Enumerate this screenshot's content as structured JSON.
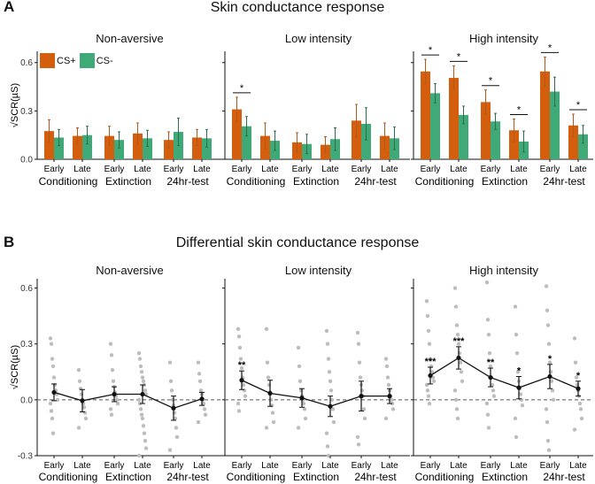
{
  "figure": {
    "panel_a_letter": "A",
    "panel_b_letter": "B",
    "panel_a_title": "Skin conductance response",
    "panel_b_title": "Differential skin conductance response"
  },
  "colors": {
    "cs_plus": "#D35F0E",
    "cs_minus": "#3FAA78",
    "dots": "#bdbdbd",
    "line": "#111111",
    "zero": "#555555"
  },
  "chart_data": [
    {
      "type": "bar",
      "title": "Skin conductance response",
      "ylabel": "√SCR(µS)",
      "ylim": [
        0,
        0.67
      ],
      "yticks": [
        0.0,
        0.3,
        0.6
      ],
      "ytick_labels": [
        "0.0",
        "0.3",
        "0.6"
      ],
      "facets": [
        "Non-aversive",
        "Low intensity",
        "High intensity"
      ],
      "phases": [
        "Conditioning",
        "Extinction",
        "24hr-test"
      ],
      "categories": [
        "Early",
        "Late",
        "Early",
        "Late",
        "Early",
        "Late"
      ],
      "legend": [
        "CS+",
        "CS-"
      ],
      "series": [
        {
          "name": "CS+",
          "facets": [
            {
              "values": [
                0.175,
                0.145,
                0.145,
                0.16,
                0.12,
                0.135
              ],
              "errors": [
                0.07,
                0.05,
                0.06,
                0.065,
                0.05,
                0.05
              ]
            },
            {
              "values": [
                0.31,
                0.145,
                0.105,
                0.09,
                0.24,
                0.145
              ],
              "errors": [
                0.075,
                0.08,
                0.06,
                0.05,
                0.1,
                0.08
              ]
            },
            {
              "values": [
                0.545,
                0.505,
                0.355,
                0.18,
                0.545,
                0.21
              ],
              "errors": [
                0.075,
                0.075,
                0.075,
                0.07,
                0.09,
                0.07
              ]
            }
          ]
        },
        {
          "name": "CS-",
          "facets": [
            {
              "values": [
                0.135,
                0.15,
                0.12,
                0.13,
                0.17,
                0.13
              ],
              "errors": [
                0.05,
                0.055,
                0.05,
                0.05,
                0.085,
                0.055
              ]
            },
            {
              "values": [
                0.205,
                0.115,
                0.095,
                0.125,
                0.22,
                0.13
              ],
              "errors": [
                0.06,
                0.06,
                0.06,
                0.07,
                0.1,
                0.07
              ]
            },
            {
              "values": [
                0.41,
                0.275,
                0.235,
                0.11,
                0.42,
                0.155
              ],
              "errors": [
                0.06,
                0.055,
                0.05,
                0.065,
                0.09,
                0.055
              ]
            }
          ]
        }
      ],
      "significance": [
        [],
        [
          {
            "index": 0,
            "label": "*"
          }
        ],
        [
          {
            "index": 0,
            "label": "*"
          },
          {
            "index": 1,
            "label": "*"
          },
          {
            "index": 2,
            "label": "*"
          },
          {
            "index": 3,
            "label": "*"
          },
          {
            "index": 4,
            "label": "*"
          },
          {
            "index": 5,
            "label": "*"
          }
        ]
      ]
    },
    {
      "type": "scatter",
      "title": "Differential skin conductance response",
      "ylabel": "√SCR(µS)",
      "ylim": [
        -0.3,
        0.65
      ],
      "yticks": [
        -0.3,
        0.0,
        0.3,
        0.6
      ],
      "ytick_labels": [
        "-0.3",
        "0.0",
        "0.3",
        "0.6"
      ],
      "facets": [
        "Non-aversive",
        "Low intensity",
        "High intensity"
      ],
      "phases": [
        "Conditioning",
        "Extinction",
        "24hr-test"
      ],
      "categories": [
        "Early",
        "Late",
        "Early",
        "Late",
        "Early",
        "Late"
      ],
      "means": [
        [
          0.04,
          -0.005,
          0.03,
          0.03,
          -0.045,
          0.005
        ],
        [
          0.105,
          0.035,
          0.01,
          -0.035,
          0.02,
          0.02
        ],
        [
          0.13,
          0.225,
          0.12,
          0.065,
          0.125,
          0.06
        ]
      ],
      "errors": [
        [
          0.045,
          0.06,
          0.04,
          0.05,
          0.065,
          0.035
        ],
        [
          0.05,
          0.07,
          0.05,
          0.055,
          0.08,
          0.04
        ],
        [
          0.045,
          0.06,
          0.05,
          0.06,
          0.065,
          0.04
        ]
      ],
      "significance": [
        [
          "",
          "",
          "",
          "",
          "",
          ""
        ],
        [
          "**",
          "",
          "",
          "",
          "",
          ""
        ],
        [
          "***",
          "***",
          "**",
          "*",
          "*",
          "*"
        ]
      ],
      "dots": [
        [
          [
            0.33,
            0.3,
            0.22,
            0.18,
            0.12,
            0.08,
            0.05,
            0.03,
            0.0,
            -0.02,
            -0.06,
            -0.1,
            -0.18
          ],
          [
            0.16,
            0.1,
            0.06,
            0.03,
            0.0,
            -0.02,
            -0.04,
            -0.07,
            -0.1,
            -0.15
          ],
          [
            0.3,
            0.24,
            0.16,
            0.1,
            0.07,
            0.04,
            0.02,
            0.0,
            -0.02,
            -0.05,
            -0.08
          ],
          [
            0.25,
            0.22,
            0.18,
            0.15,
            0.12,
            0.1,
            0.08,
            0.05,
            0.03,
            0.0,
            -0.02,
            -0.05,
            -0.08,
            -0.1,
            -0.14,
            -0.18,
            -0.22,
            -0.26,
            -0.3
          ],
          [
            0.2,
            0.1,
            0.05,
            0.0,
            -0.03,
            -0.07,
            -0.1,
            -0.15,
            -0.2,
            -0.27
          ],
          [
            0.2,
            0.14,
            0.1,
            0.05,
            0.03,
            0.0,
            -0.02,
            -0.05,
            -0.08,
            -0.12
          ]
        ],
        [
          [
            0.38,
            0.34,
            0.28,
            0.22,
            0.17,
            0.12,
            0.08,
            0.05,
            0.02,
            -0.02,
            -0.06
          ],
          [
            0.38,
            0.2,
            0.12,
            0.08,
            0.04,
            0.0,
            -0.03,
            -0.07,
            -0.12,
            -0.15
          ],
          [
            0.28,
            0.18,
            0.1,
            0.05,
            0.02,
            0.0,
            -0.02,
            -0.05,
            -0.1,
            -0.15
          ],
          [
            0.37,
            0.3,
            0.22,
            0.15,
            0.1,
            0.05,
            0.0,
            -0.05,
            -0.12,
            -0.18,
            -0.25,
            -0.3
          ],
          [
            0.36,
            0.3,
            0.2,
            0.12,
            0.08,
            0.05,
            0.02,
            -0.05,
            -0.1,
            -0.2,
            -0.24
          ],
          [
            0.22,
            0.18,
            0.12,
            0.08,
            0.05,
            0.02,
            0.0,
            -0.02,
            -0.05,
            -0.1
          ]
        ],
        [
          [
            0.53,
            0.45,
            0.37,
            0.3,
            0.22,
            0.18,
            0.15,
            0.12,
            0.1,
            0.08,
            0.05,
            0.02,
            -0.02
          ],
          [
            0.6,
            0.5,
            0.4,
            0.35,
            0.3,
            0.25,
            0.2,
            0.15,
            0.1,
            0.05,
            0.0,
            -0.05,
            -0.1
          ],
          [
            0.63,
            0.43,
            0.35,
            0.25,
            0.18,
            0.12,
            0.08,
            0.05,
            0.02,
            -0.02,
            -0.08,
            -0.15
          ],
          [
            0.5,
            0.35,
            0.25,
            0.15,
            0.1,
            0.06,
            0.03,
            0.0,
            -0.03,
            -0.1,
            -0.2
          ],
          [
            0.61,
            0.48,
            0.4,
            0.3,
            0.2,
            0.15,
            0.1,
            0.05,
            0.0,
            -0.05,
            -0.12,
            -0.22,
            -0.27
          ],
          [
            0.33,
            0.2,
            0.12,
            0.08,
            0.05,
            0.02,
            -0.02,
            -0.05,
            -0.1,
            -0.16
          ]
        ]
      ]
    }
  ]
}
